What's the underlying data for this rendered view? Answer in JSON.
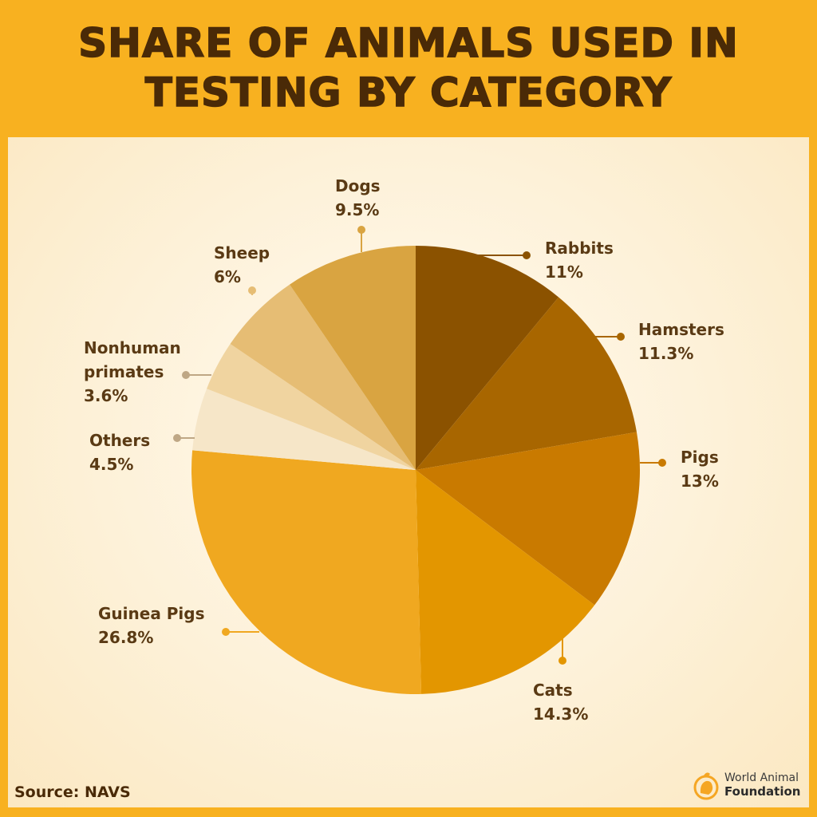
{
  "header": {
    "title_line1": "SHARE OF ANIMALS USED IN",
    "title_line2": "TESTING BY CATEGORY"
  },
  "footer": {
    "source": "Source: NAVS",
    "logo_line1": "World Animal",
    "logo_line2": "Foundation",
    "logo_icon": "animal-foundation-logo-icon"
  },
  "colors": {
    "banner": "#f8b120",
    "title_text": "#4a2a07",
    "label_text": "#5a3a14"
  },
  "chart_data": {
    "type": "pie",
    "title": "Share of Animals Used in Testing by Category",
    "source": "NAVS",
    "start_angle_deg": 0,
    "direction": "clockwise",
    "categories": [
      "Rabbits",
      "Hamsters",
      "Pigs",
      "Cats",
      "Guinea Pigs",
      "Others",
      "Nonhuman primates",
      "Sheep",
      "Dogs"
    ],
    "values": [
      11,
      11.3,
      13,
      14.3,
      26.8,
      4.5,
      3.6,
      6,
      9.5
    ],
    "unit": "%",
    "labels": [
      "11%",
      "11.3%",
      "13%",
      "14.3%",
      "26.8%",
      "4.5%",
      "3.6%",
      "6%",
      "9.5%"
    ],
    "slice_colors": [
      "#8b5200",
      "#a86600",
      "#c97a00",
      "#e39600",
      "#f0a820",
      "#f6e6c8",
      "#f0d4a0",
      "#e6bd74",
      "#d9a441"
    ]
  }
}
